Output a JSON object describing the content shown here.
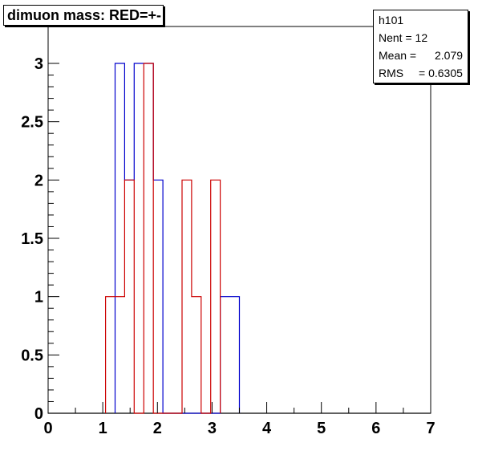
{
  "title": "dimuon mass: RED=+-",
  "stats": {
    "name": "h101",
    "entries_label": "Nent = 12",
    "mean_label": "Mean  =",
    "mean_value": "2.079",
    "rms_label": "RMS",
    "rms_value": "= 0.6305"
  },
  "chart_data": {
    "type": "histogram",
    "xlim": [
      0,
      7
    ],
    "ylim": [
      0,
      3
    ],
    "x_ticks": [
      "0",
      "1",
      "2",
      "3",
      "4",
      "5",
      "6",
      "7"
    ],
    "y_ticks": [
      "0",
      "0.5",
      "1",
      "1.5",
      "2",
      "2.5",
      "3"
    ],
    "bin_width": 0.175,
    "series": [
      {
        "color": "#0000cc",
        "bins": [
          {
            "x0": 1.225,
            "x1": 1.4,
            "y": 3
          },
          {
            "x0": 1.4,
            "x1": 1.575,
            "y": 2
          },
          {
            "x0": 1.575,
            "x1": 1.75,
            "y": 3
          },
          {
            "x0": 1.75,
            "x1": 1.925,
            "y": 3
          },
          {
            "x0": 1.925,
            "x1": 2.1,
            "y": 2
          },
          {
            "x0": 3.15,
            "x1": 3.5,
            "y": 1
          }
        ]
      },
      {
        "color": "#cc0000",
        "bins": [
          {
            "x0": 1.05,
            "x1": 1.4,
            "y": 1
          },
          {
            "x0": 1.4,
            "x1": 1.575,
            "y": 2
          },
          {
            "x0": 1.75,
            "x1": 1.925,
            "y": 3
          },
          {
            "x0": 2.45,
            "x1": 2.625,
            "y": 2
          },
          {
            "x0": 2.625,
            "x1": 2.8,
            "y": 1
          },
          {
            "x0": 2.975,
            "x1": 3.15,
            "y": 2
          }
        ]
      }
    ]
  }
}
